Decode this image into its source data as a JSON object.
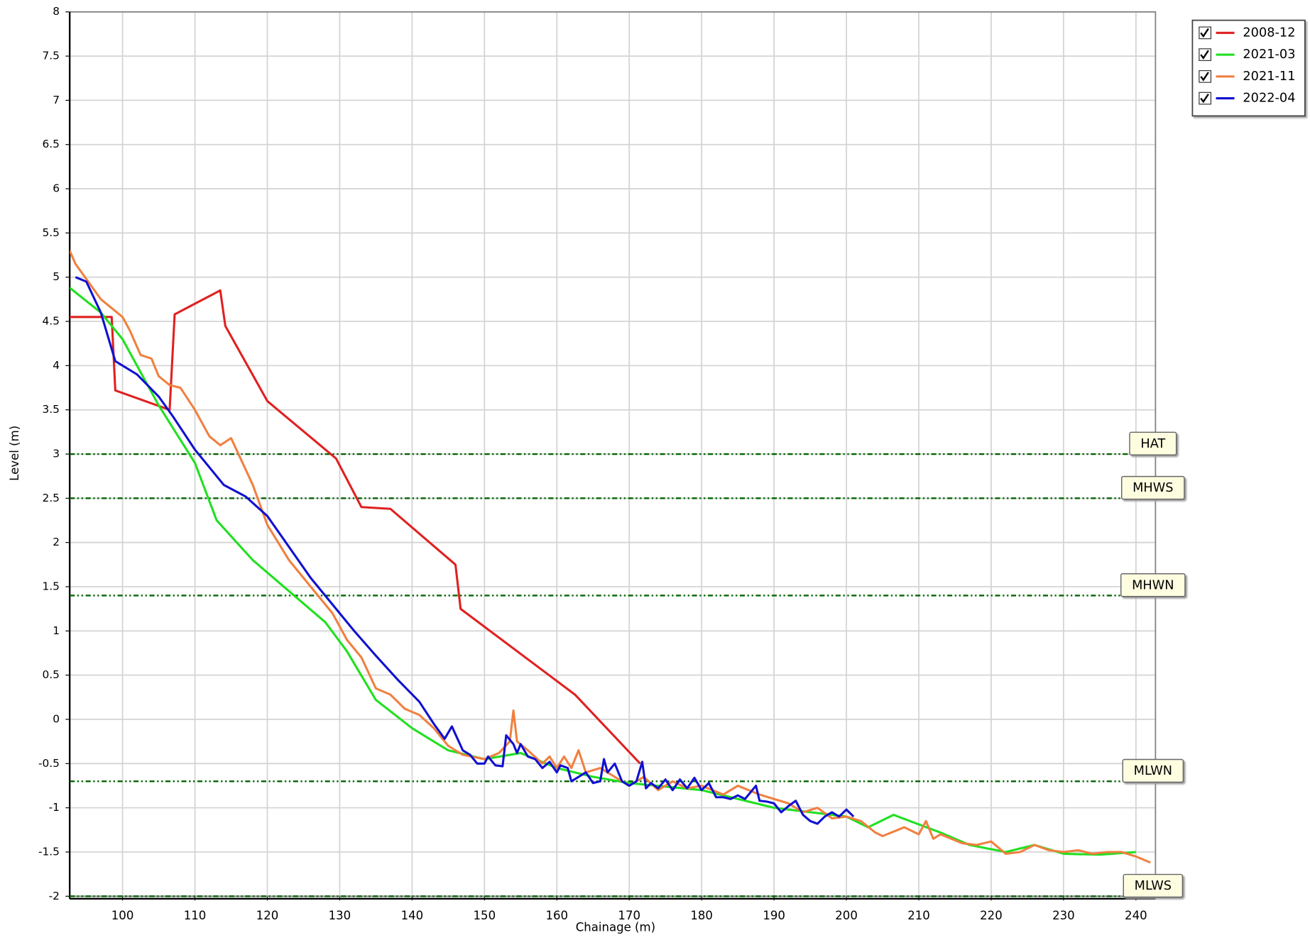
{
  "chart_data": {
    "type": "line",
    "xlabel": "Chainage (m)",
    "ylabel": "Level (m)",
    "xlim": [
      92.7,
      242.7
    ],
    "ylim": [
      -2,
      8
    ],
    "xticks": [
      100,
      110,
      120,
      130,
      140,
      150,
      160,
      170,
      180,
      190,
      200,
      210,
      220,
      230,
      240
    ],
    "yticks": [
      -2,
      -1.5,
      -1,
      -0.5,
      0,
      0.5,
      1,
      1.5,
      2,
      2.5,
      3,
      3.5,
      4,
      4.5,
      5,
      5.5,
      6,
      6.5,
      7,
      7.5,
      8
    ],
    "grid": true,
    "legend": "upper right",
    "reference_lines": [
      {
        "label": "HAT",
        "value": 3,
        "color": "#006400"
      },
      {
        "label": "MHWS",
        "value": 2.5,
        "color": "#006400"
      },
      {
        "label": "MHWN",
        "value": 1.4,
        "color": "#006400"
      },
      {
        "label": "MLWN",
        "value": -0.7,
        "color": "#006400"
      },
      {
        "label": "MLWS",
        "value": -2,
        "color": "#006400"
      }
    ],
    "series": [
      {
        "name": "2008-12",
        "color": "#e02020",
        "x": [
          92.7,
          98.5,
          99,
          106.5,
          107.2,
          113.5,
          114.2,
          120,
          129.5,
          133,
          137,
          146,
          146.7,
          162.5,
          171.5
        ],
        "values": [
          4.55,
          4.55,
          3.72,
          3.5,
          4.58,
          4.85,
          4.45,
          3.6,
          2.95,
          2.4,
          2.38,
          1.75,
          1.25,
          0.28,
          -0.5
        ]
      },
      {
        "name": "2021-03",
        "color": "#20e020",
        "x": [
          92.7,
          97,
          100,
          105,
          110,
          113,
          118,
          123,
          128,
          131,
          135,
          140,
          145,
          150,
          155,
          160,
          165,
          170,
          180,
          190,
          200,
          203,
          206.5,
          213,
          217,
          222,
          226,
          230,
          235,
          240
        ],
        "values": [
          4.88,
          4.6,
          4.3,
          3.55,
          2.9,
          2.25,
          1.8,
          1.45,
          1.1,
          0.77,
          0.22,
          -0.1,
          -0.35,
          -0.45,
          -0.38,
          -0.55,
          -0.65,
          -0.72,
          -0.8,
          -1.0,
          -1.1,
          -1.22,
          -1.08,
          -1.28,
          -1.42,
          -1.5,
          -1.42,
          -1.52,
          -1.53,
          -1.5
        ]
      },
      {
        "name": "2021-11",
        "color": "#f08040",
        "x": [
          92.7,
          93.5,
          97,
          100,
          101,
          102.5,
          104,
          105,
          106.5,
          108,
          110,
          112,
          113.5,
          115,
          118,
          120,
          123,
          126,
          129,
          131,
          133,
          135,
          137,
          139,
          141,
          143,
          145,
          147,
          150,
          152,
          153.5,
          154,
          154.5,
          156,
          158,
          159,
          160,
          161,
          162,
          163,
          164,
          166,
          168,
          170,
          172,
          174,
          176,
          178,
          180,
          183,
          185,
          188,
          190,
          192,
          194,
          196,
          198,
          200,
          202,
          204,
          205,
          208,
          210,
          211,
          212,
          213,
          216,
          218,
          220,
          222,
          224,
          226,
          228,
          230,
          232,
          234,
          236,
          238,
          240,
          242
        ],
        "values": [
          5.3,
          5.15,
          4.75,
          4.55,
          4.4,
          4.12,
          4.08,
          3.88,
          3.78,
          3.75,
          3.5,
          3.2,
          3.1,
          3.18,
          2.65,
          2.2,
          1.8,
          1.5,
          1.2,
          0.9,
          0.7,
          0.35,
          0.28,
          0.12,
          0.05,
          -0.1,
          -0.3,
          -0.4,
          -0.45,
          -0.38,
          -0.25,
          0.1,
          -0.25,
          -0.35,
          -0.5,
          -0.42,
          -0.55,
          -0.42,
          -0.55,
          -0.35,
          -0.6,
          -0.55,
          -0.65,
          -0.75,
          -0.65,
          -0.8,
          -0.7,
          -0.78,
          -0.75,
          -0.85,
          -0.75,
          -0.85,
          -0.9,
          -0.95,
          -1.05,
          -1.0,
          -1.12,
          -1.1,
          -1.15,
          -1.28,
          -1.32,
          -1.22,
          -1.3,
          -1.15,
          -1.35,
          -1.3,
          -1.4,
          -1.42,
          -1.38,
          -1.52,
          -1.5,
          -1.42,
          -1.48,
          -1.5,
          -1.48,
          -1.52,
          -1.5,
          -1.5,
          -1.55,
          -1.62
        ]
      },
      {
        "name": "2022-04",
        "color": "#1010d0",
        "x": [
          93.5,
          95,
          97,
          99,
          102,
          105,
          107,
          110,
          114,
          117,
          120,
          123,
          126,
          129,
          132,
          135,
          138,
          141,
          143,
          144.5,
          145.5,
          147,
          148,
          149,
          150,
          150.5,
          151.5,
          152.5,
          153,
          154,
          154.5,
          155,
          155.5,
          156,
          157,
          158,
          159,
          160,
          160.5,
          161.5,
          162,
          163,
          164,
          165,
          166,
          166.5,
          167,
          168,
          169,
          170,
          171,
          171.8,
          172.3,
          173,
          174,
          175,
          176,
          177,
          178,
          179,
          180,
          181,
          182,
          183,
          184,
          185,
          186,
          187,
          187.5,
          188,
          189,
          190,
          191,
          192,
          193,
          194,
          195,
          196,
          197,
          198,
          199,
          200,
          201
        ],
        "values": [
          5.0,
          4.95,
          4.6,
          4.05,
          3.9,
          3.65,
          3.42,
          3.05,
          2.65,
          2.52,
          2.3,
          1.95,
          1.6,
          1.3,
          1.0,
          0.72,
          0.45,
          0.2,
          -0.05,
          -0.22,
          -0.08,
          -0.35,
          -0.4,
          -0.5,
          -0.5,
          -0.42,
          -0.52,
          -0.53,
          -0.18,
          -0.28,
          -0.38,
          -0.28,
          -0.35,
          -0.42,
          -0.45,
          -0.55,
          -0.48,
          -0.6,
          -0.52,
          -0.55,
          -0.7,
          -0.65,
          -0.6,
          -0.72,
          -0.7,
          -0.45,
          -0.6,
          -0.5,
          -0.7,
          -0.75,
          -0.7,
          -0.48,
          -0.78,
          -0.72,
          -0.78,
          -0.68,
          -0.8,
          -0.68,
          -0.78,
          -0.66,
          -0.8,
          -0.72,
          -0.88,
          -0.88,
          -0.9,
          -0.86,
          -0.9,
          -0.8,
          -0.75,
          -0.92,
          -0.93,
          -0.95,
          -1.05,
          -0.98,
          -0.92,
          -1.08,
          -1.15,
          -1.18,
          -1.1,
          -1.05,
          -1.1,
          -1.02,
          -1.1
        ]
      }
    ]
  }
}
